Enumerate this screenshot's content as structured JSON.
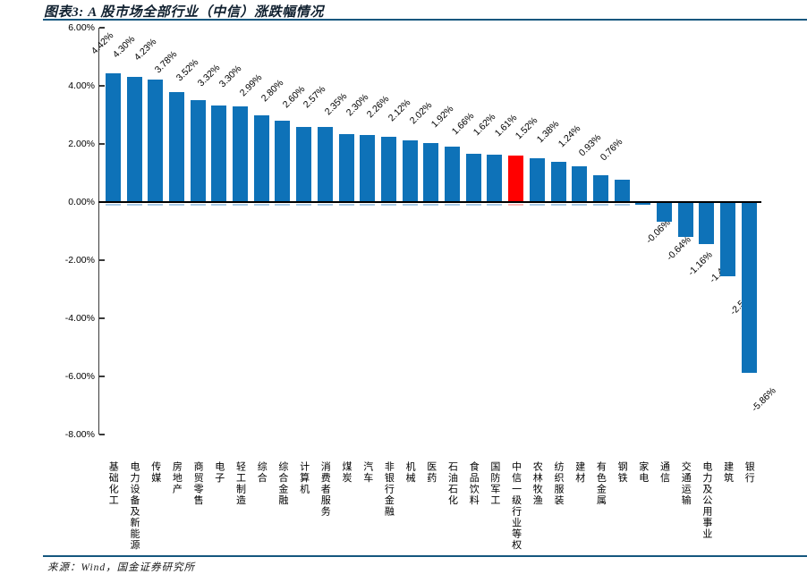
{
  "figure": {
    "title": "图表3: A 股市场全部行业（中信）涨跌幅情况",
    "source": "来源：Wind，国金证券研究所"
  },
  "chart_data": {
    "type": "bar",
    "title": "A 股市场全部行业（中信）涨跌幅情况",
    "categories": [
      "基础化工",
      "电力设备及新能源",
      "传媒",
      "房地产",
      "商贸零售",
      "电子",
      "轻工制造",
      "综合",
      "综合金融",
      "计算机",
      "消费者服务",
      "煤炭",
      "汽车",
      "非银行金融",
      "机械",
      "医药",
      "石油石化",
      "食品饮料",
      "国防军工",
      "中信一级行业等权",
      "农林牧渔",
      "纺织服装",
      "建材",
      "有色金属",
      "钢铁",
      "家电",
      "通信",
      "交通运输",
      "电力及公用事业",
      "建筑",
      "银行"
    ],
    "values": [
      4.42,
      4.3,
      4.23,
      3.78,
      3.52,
      3.32,
      3.3,
      2.99,
      2.8,
      2.6,
      2.57,
      2.35,
      2.3,
      2.26,
      2.12,
      2.02,
      1.92,
      1.66,
      1.62,
      1.61,
      1.52,
      1.38,
      1.24,
      0.93,
      0.76,
      -0.06,
      -0.64,
      -1.16,
      -1.4,
      -2.52,
      -5.86
    ],
    "data_labels": [
      "4.42%",
      "4.30%",
      "4.23%",
      "3.78%",
      "3.52%",
      "3.32%",
      "3.30%",
      "2.99%",
      "2.80%",
      "2.60%",
      "2.57%",
      "2.35%",
      "2.30%",
      "2.26%",
      "2.12%",
      "2.02%",
      "1.92%",
      "1.66%",
      "1.62%",
      "1.61%",
      "1.52%",
      "1.38%",
      "1.24%",
      "0.93%",
      "0.76%",
      "-0.06%",
      "-0.64%",
      "-1.16%",
      "-1.40%",
      "-2.52%",
      "-5.86%"
    ],
    "highlight_index": 19,
    "highlight_category": "中信一级行业等权",
    "bar_color": "#0E72B8",
    "bar_foot_color": "#A9CBE8",
    "highlight_color": "#FF0000",
    "highlight_foot_color": "#FFB8B8",
    "ylim": [
      -8,
      6
    ],
    "yticks": [
      6,
      4,
      2,
      0,
      -2,
      -4,
      -6,
      -8
    ],
    "ytick_labels": [
      "6.00%",
      "4.00%",
      "2.00%",
      "0.00%",
      "-2.00%",
      "-4.00%",
      "-6.00%",
      "-8.00%"
    ],
    "grid": false,
    "legend": false,
    "xlabel": "",
    "ylabel": ""
  }
}
